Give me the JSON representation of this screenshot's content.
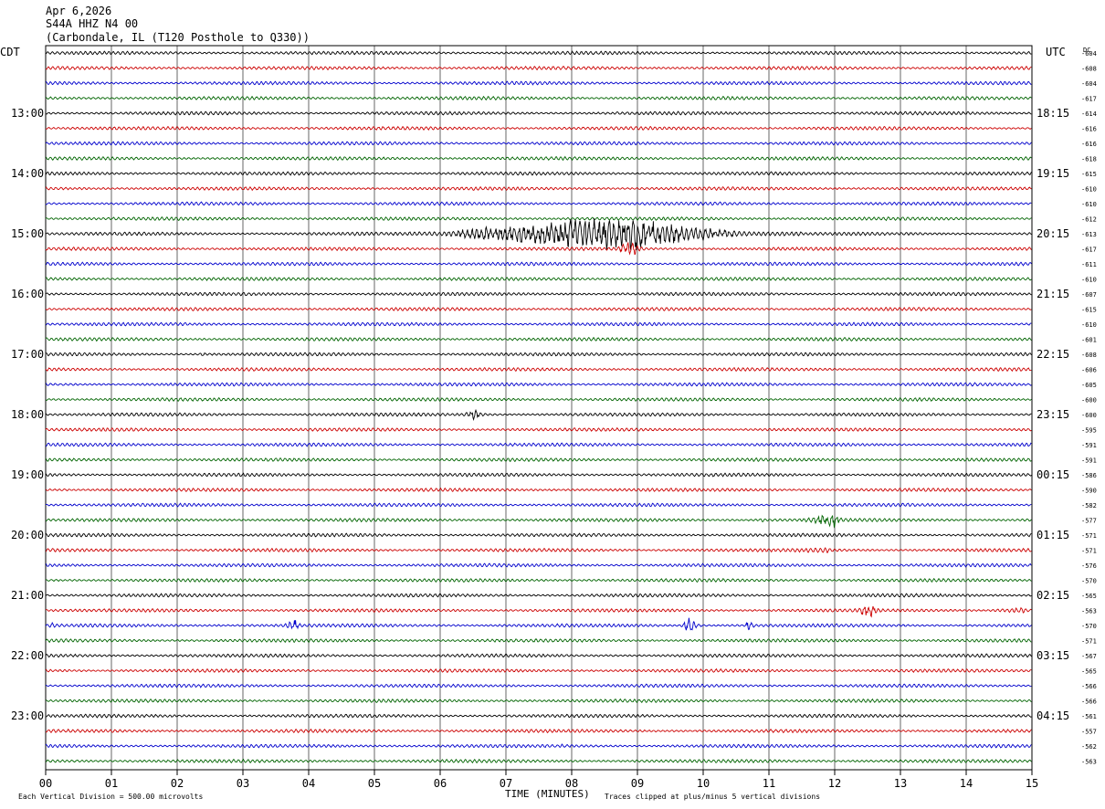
{
  "header": {
    "date": "Apr 6,2026",
    "station": "S44A HHZ N4 00",
    "location": "(Carbondale, IL (T120 Posthole to Q330))"
  },
  "left_axis_label": "CDT",
  "right_axis_label": "UTC",
  "dc_label": "DC",
  "footer": {
    "scale": "Each Vertical Division =  500.00 microvolts",
    "xlabel": "TIME (MINUTES)",
    "clip_note": "Traces clipped at plus/minus 5 vertical divisions"
  },
  "colors": {
    "trace": [
      "#000000",
      "#cc0000",
      "#0000cc",
      "#006400"
    ],
    "grid": "#000000"
  },
  "chart_data": {
    "type": "line",
    "subtype": "helicorder",
    "x_ticks": [
      "00",
      "01",
      "02",
      "03",
      "04",
      "05",
      "06",
      "07",
      "08",
      "09",
      "10",
      "11",
      "12",
      "13",
      "14",
      "15"
    ],
    "xlim": [
      0,
      15
    ],
    "minutes_per_row": 15,
    "row_count": 48,
    "left_time_labels": [
      {
        "row": 4,
        "label": "13:00"
      },
      {
        "row": 8,
        "label": "14:00"
      },
      {
        "row": 12,
        "label": "15:00"
      },
      {
        "row": 16,
        "label": "16:00"
      },
      {
        "row": 20,
        "label": "17:00"
      },
      {
        "row": 24,
        "label": "18:00"
      },
      {
        "row": 28,
        "label": "19:00"
      },
      {
        "row": 32,
        "label": "20:00"
      },
      {
        "row": 36,
        "label": "21:00"
      },
      {
        "row": 40,
        "label": "22:00"
      },
      {
        "row": 44,
        "label": "23:00"
      }
    ],
    "right_time_labels": [
      {
        "row": 4,
        "label": "18:15"
      },
      {
        "row": 8,
        "label": "19:15"
      },
      {
        "row": 12,
        "label": "20:15"
      },
      {
        "row": 16,
        "label": "21:15"
      },
      {
        "row": 20,
        "label": "22:15"
      },
      {
        "row": 24,
        "label": "23:15"
      },
      {
        "row": 28,
        "label": "00:15"
      },
      {
        "row": 32,
        "label": "01:15"
      },
      {
        "row": 36,
        "label": "02:15"
      },
      {
        "row": 40,
        "label": "03:15"
      },
      {
        "row": 44,
        "label": "04:15"
      }
    ],
    "dc_offsets": [
      "-604",
      "-608",
      "-604",
      "-617",
      "-614",
      "-616",
      "-616",
      "-618",
      "-615",
      "-610",
      "-610",
      "-612",
      "-613",
      "-617",
      "-611",
      "-610",
      "-607",
      "-615",
      "-610",
      "-601",
      "-608",
      "-606",
      "-605",
      "-600",
      "-600",
      "-595",
      "-591",
      "-591",
      "-586",
      "-590",
      "-582",
      "-577",
      "-571",
      "-571",
      "-576",
      "-570",
      "-565",
      "-563",
      "-570",
      "-571",
      "-567",
      "-565",
      "-566",
      "-566",
      "-561",
      "-557",
      "-562",
      "-563"
    ],
    "events": [
      {
        "row": 12,
        "start_min": 5.5,
        "end_min": 11.5,
        "peak_min": 8.9,
        "amp_div": 4.5
      },
      {
        "row": 13,
        "start_min": 8.6,
        "end_min": 9.3,
        "peak_min": 8.9,
        "amp_div": 2.0
      },
      {
        "row": 11,
        "start_min": 10.0,
        "end_min": 10.3,
        "peak_min": 10.1,
        "amp_div": 0.8
      },
      {
        "row": 24,
        "start_min": 6.3,
        "end_min": 6.9,
        "peak_min": 6.5,
        "amp_div": 1.6
      },
      {
        "row": 20,
        "start_min": 2.3,
        "end_min": 2.5,
        "peak_min": 2.4,
        "amp_div": 0.8
      },
      {
        "row": 20,
        "start_min": 3.7,
        "end_min": 4.0,
        "peak_min": 3.8,
        "amp_div": 0.7
      },
      {
        "row": 31,
        "start_min": 11.3,
        "end_min": 12.3,
        "peak_min": 12.0,
        "amp_div": 1.8
      },
      {
        "row": 31,
        "start_min": 10.8,
        "end_min": 11.0,
        "peak_min": 10.9,
        "amp_div": 0.8
      },
      {
        "row": 33,
        "start_min": 10.5,
        "end_min": 12.3,
        "peak_min": 11.9,
        "amp_div": 1.0
      },
      {
        "row": 37,
        "start_min": 12.3,
        "end_min": 12.9,
        "peak_min": 12.5,
        "amp_div": 2.0
      },
      {
        "row": 37,
        "start_min": 14.1,
        "end_min": 15.0,
        "peak_min": 14.9,
        "amp_div": 1.0
      },
      {
        "row": 38,
        "start_min": 0.0,
        "end_min": 0.3,
        "peak_min": 0.1,
        "amp_div": 1.0
      },
      {
        "row": 38,
        "start_min": 3.5,
        "end_min": 4.0,
        "peak_min": 3.8,
        "amp_div": 1.5
      },
      {
        "row": 38,
        "start_min": 9.6,
        "end_min": 10.1,
        "peak_min": 9.8,
        "amp_div": 1.8
      },
      {
        "row": 38,
        "start_min": 10.6,
        "end_min": 10.9,
        "peak_min": 10.7,
        "amp_div": 1.5
      },
      {
        "row": 7,
        "start_min": 0.8,
        "end_min": 1.2,
        "peak_min": 1.0,
        "amp_div": 0.8
      },
      {
        "row": 46,
        "start_min": 7.8,
        "end_min": 7.9,
        "peak_min": 7.85,
        "amp_div": 0.8
      }
    ]
  }
}
